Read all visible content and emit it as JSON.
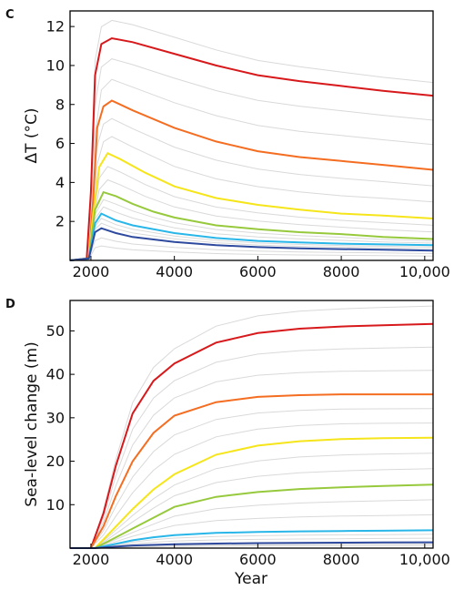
{
  "chart_data": [
    {
      "panel_label": "C",
      "type": "line",
      "xlabel": "",
      "ylabel": "ΔT (°C)",
      "xlim": [
        1500,
        10200
      ],
      "ylim": [
        0,
        12.8
      ],
      "xticks": [
        2000,
        4000,
        6000,
        8000,
        10000
      ],
      "xtick_labels": [
        "2000",
        "4000",
        "6000",
        "8000",
        "10,000"
      ],
      "yticks": [
        2,
        4,
        6,
        8,
        10,
        12
      ],
      "ytick_labels": [
        "2",
        "4",
        "6",
        "8",
        "10",
        "12"
      ],
      "grid": false,
      "series": [
        {
          "color": "#d7191c",
          "values": [
            [
              1500,
              0
            ],
            [
              1900,
              0.1
            ],
            [
              2000,
              3.5
            ],
            [
              2100,
              9.5
            ],
            [
              2250,
              11.1
            ],
            [
              2500,
              11.4
            ],
            [
              3000,
              11.2
            ],
            [
              4000,
              10.6
            ],
            [
              5000,
              10.0
            ],
            [
              6000,
              9.5
            ],
            [
              7000,
              9.2
            ],
            [
              8000,
              8.95
            ],
            [
              9000,
              8.7
            ],
            [
              10200,
              8.45
            ]
          ]
        },
        {
          "color": "#f46d21",
          "values": [
            [
              1500,
              0
            ],
            [
              1950,
              0.1
            ],
            [
              2050,
              3.0
            ],
            [
              2150,
              6.8
            ],
            [
              2300,
              7.9
            ],
            [
              2500,
              8.2
            ],
            [
              3000,
              7.7
            ],
            [
              4000,
              6.8
            ],
            [
              5000,
              6.1
            ],
            [
              6000,
              5.6
            ],
            [
              7000,
              5.3
            ],
            [
              8000,
              5.1
            ],
            [
              9000,
              4.9
            ],
            [
              10200,
              4.65
            ]
          ]
        },
        {
          "color": "#f5e51a",
          "values": [
            [
              1500,
              0
            ],
            [
              1950,
              0.1
            ],
            [
              2050,
              2.3
            ],
            [
              2200,
              4.8
            ],
            [
              2400,
              5.5
            ],
            [
              2700,
              5.2
            ],
            [
              3300,
              4.5
            ],
            [
              4000,
              3.8
            ],
            [
              5000,
              3.2
            ],
            [
              6000,
              2.85
            ],
            [
              7000,
              2.6
            ],
            [
              8000,
              2.4
            ],
            [
              9000,
              2.3
            ],
            [
              10200,
              2.15
            ]
          ]
        },
        {
          "color": "#97c93d",
          "values": [
            [
              1500,
              0
            ],
            [
              1950,
              0.1
            ],
            [
              2100,
              2.6
            ],
            [
              2300,
              3.5
            ],
            [
              2600,
              3.3
            ],
            [
              3000,
              2.9
            ],
            [
              3500,
              2.5
            ],
            [
              4000,
              2.2
            ],
            [
              5000,
              1.8
            ],
            [
              6000,
              1.6
            ],
            [
              7000,
              1.45
            ],
            [
              8000,
              1.35
            ],
            [
              9000,
              1.2
            ],
            [
              10200,
              1.1
            ]
          ]
        },
        {
          "color": "#29b6e8",
          "values": [
            [
              1500,
              0
            ],
            [
              1950,
              0.1
            ],
            [
              2100,
              1.9
            ],
            [
              2250,
              2.4
            ],
            [
              2600,
              2.05
            ],
            [
              3000,
              1.8
            ],
            [
              4000,
              1.4
            ],
            [
              5000,
              1.15
            ],
            [
              6000,
              1.0
            ],
            [
              7000,
              0.92
            ],
            [
              8000,
              0.86
            ],
            [
              9000,
              0.82
            ],
            [
              10200,
              0.78
            ]
          ]
        },
        {
          "color": "#2e4a9e",
          "values": [
            [
              1500,
              0
            ],
            [
              1950,
              0.1
            ],
            [
              2100,
              1.45
            ],
            [
              2250,
              1.65
            ],
            [
              2600,
              1.4
            ],
            [
              3000,
              1.2
            ],
            [
              4000,
              0.95
            ],
            [
              5000,
              0.78
            ],
            [
              6000,
              0.68
            ],
            [
              7000,
              0.62
            ],
            [
              8000,
              0.58
            ],
            [
              9000,
              0.55
            ],
            [
              10200,
              0.5
            ]
          ]
        }
      ]
    },
    {
      "panel_label": "D",
      "type": "line",
      "xlabel": "Year",
      "ylabel": "Sea-level change (m)",
      "xlim": [
        1500,
        10200
      ],
      "ylim": [
        0,
        57
      ],
      "xticks": [
        2000,
        4000,
        6000,
        8000,
        10000
      ],
      "xtick_labels": [
        "2000",
        "4000",
        "6000",
        "8000",
        "10,000"
      ],
      "yticks": [
        10,
        20,
        30,
        40,
        50
      ],
      "ytick_labels": [
        "10",
        "20",
        "30",
        "40",
        "50"
      ],
      "grid": false,
      "series": [
        {
          "color": "#d7191c",
          "values": [
            [
              1500,
              0
            ],
            [
              2000,
              0
            ],
            [
              2300,
              8
            ],
            [
              2600,
              19
            ],
            [
              3000,
              31
            ],
            [
              3500,
              38.5
            ],
            [
              4000,
              42.5
            ],
            [
              5000,
              47.3
            ],
            [
              6000,
              49.5
            ],
            [
              7000,
              50.5
            ],
            [
              8000,
              51
            ],
            [
              9000,
              51.3
            ],
            [
              10200,
              51.6
            ]
          ]
        },
        {
          "color": "#f46d21",
          "values": [
            [
              1500,
              0
            ],
            [
              2000,
              0
            ],
            [
              2300,
              5
            ],
            [
              2600,
              12
            ],
            [
              3000,
              20
            ],
            [
              3500,
              26.5
            ],
            [
              4000,
              30.5
            ],
            [
              5000,
              33.6
            ],
            [
              6000,
              34.8
            ],
            [
              7000,
              35.2
            ],
            [
              8000,
              35.4
            ],
            [
              9000,
              35.4
            ],
            [
              10200,
              35.4
            ]
          ]
        },
        {
          "color": "#f5e51a",
          "values": [
            [
              1500,
              0
            ],
            [
              2100,
              0
            ],
            [
              2500,
              4
            ],
            [
              3000,
              9
            ],
            [
              3500,
              13.5
            ],
            [
              4000,
              17
            ],
            [
              5000,
              21.5
            ],
            [
              6000,
              23.6
            ],
            [
              7000,
              24.6
            ],
            [
              8000,
              25.1
            ],
            [
              9000,
              25.3
            ],
            [
              10200,
              25.4
            ]
          ]
        },
        {
          "color": "#97c93d",
          "values": [
            [
              1500,
              0
            ],
            [
              2100,
              0
            ],
            [
              2500,
              2
            ],
            [
              3000,
              4.5
            ],
            [
              3500,
              7
            ],
            [
              4000,
              9.5
            ],
            [
              5000,
              11.8
            ],
            [
              6000,
              12.9
            ],
            [
              7000,
              13.6
            ],
            [
              8000,
              14
            ],
            [
              9000,
              14.3
            ],
            [
              10200,
              14.6
            ]
          ]
        },
        {
          "color": "#29b6e8",
          "values": [
            [
              1500,
              0
            ],
            [
              2100,
              0
            ],
            [
              2500,
              0.8
            ],
            [
              3000,
              1.8
            ],
            [
              3500,
              2.5
            ],
            [
              4000,
              3.0
            ],
            [
              5000,
              3.5
            ],
            [
              6000,
              3.7
            ],
            [
              7000,
              3.85
            ],
            [
              8000,
              3.95
            ],
            [
              9000,
              4.0
            ],
            [
              10200,
              4.1
            ]
          ]
        },
        {
          "color": "#2e4a9e",
          "values": [
            [
              1500,
              0
            ],
            [
              2100,
              0
            ],
            [
              2500,
              0.3
            ],
            [
              3000,
              0.6
            ],
            [
              4000,
              0.9
            ],
            [
              5000,
              1.05
            ],
            [
              6000,
              1.15
            ],
            [
              7000,
              1.2
            ],
            [
              8000,
              1.25
            ],
            [
              9000,
              1.3
            ],
            [
              10200,
              1.35
            ]
          ]
        }
      ]
    }
  ]
}
